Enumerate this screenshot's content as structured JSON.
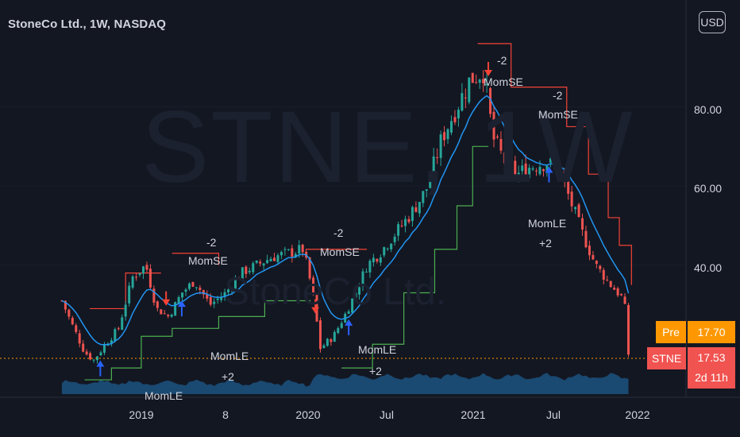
{
  "header": {
    "title": "StoneCo Ltd., 1W, NASDAQ",
    "currency": "USD"
  },
  "watermark": {
    "symbol": "STNE, 1W",
    "name": "StoneCo Ltd."
  },
  "price_axis": {
    "ticks": [
      "80.00",
      "60.00",
      "40.00"
    ]
  },
  "time_axis": {
    "ticks": [
      "2019",
      "8",
      "2020",
      "Jul",
      "2021",
      "Jul",
      "2022"
    ]
  },
  "badges": {
    "pre_label": "Pre",
    "pre_value": "17.70",
    "sym_label": "STNE",
    "sym_value": "17.53",
    "countdown": "2d 11h"
  },
  "colors": {
    "background": "#131722",
    "up": "#26a69a",
    "down": "#ef5350",
    "ema": "#2196f3",
    "stop_long": "#4caf50",
    "stop_short": "#f44336",
    "pre_badge": "#ff9800",
    "volume": "#1e5b8c"
  },
  "annotations": [
    {
      "text": "-2",
      "x": 260,
      "y": 297
    },
    {
      "text": "MomSE",
      "x": 237,
      "y": 320
    },
    {
      "text": "MomLE",
      "x": 265,
      "y": 440
    },
    {
      "text": "+2",
      "x": 279,
      "y": 466
    },
    {
      "text": "-2",
      "x": 420,
      "y": 285
    },
    {
      "text": "MomSE",
      "x": 403,
      "y": 309
    },
    {
      "text": "MomLE",
      "x": 451,
      "y": 432
    },
    {
      "text": "+2",
      "x": 465,
      "y": 459
    },
    {
      "text": "-2",
      "x": 626,
      "y": 68
    },
    {
      "text": "MomSE",
      "x": 609,
      "y": 95
    },
    {
      "text": "-2",
      "x": 696,
      "y": 112
    },
    {
      "text": "MomSE",
      "x": 678,
      "y": 136
    },
    {
      "text": "MomLE",
      "x": 665,
      "y": 273
    },
    {
      "text": "+2",
      "x": 679,
      "y": 298
    },
    {
      "text": "MomLE",
      "x": 182,
      "y": 490
    }
  ],
  "chart_data": {
    "type": "line",
    "title": "StoneCo Ltd., 1W, NASDAQ",
    "ylabel": "USD",
    "ylim": [
      9,
      101
    ],
    "xlim": [
      "2018-10-01",
      "2022-01-31"
    ],
    "grid": false,
    "series": [
      {
        "values": [
          [
            "2018-10-26",
            31
          ],
          [
            "2018-11-15",
            25
          ],
          [
            "2018-12-10",
            18
          ],
          [
            "2018-12-28",
            16
          ],
          [
            "2019-01-20",
            20
          ],
          [
            "2019-02-15",
            24
          ],
          [
            "2019-03-15",
            37
          ],
          [
            "2019-04-10",
            40
          ],
          [
            "2019-05-01",
            29
          ],
          [
            "2019-05-25",
            27
          ],
          [
            "2019-06-20",
            33
          ],
          [
            "2019-07-15",
            36
          ],
          [
            "2019-08-15",
            30
          ],
          [
            "2019-09-15",
            33
          ],
          [
            "2019-10-15",
            38
          ],
          [
            "2019-11-15",
            40
          ],
          [
            "2019-12-15",
            42
          ],
          [
            "2020-01-15",
            43
          ],
          [
            "2020-02-15",
            44
          ],
          [
            "2020-03-05",
            33
          ],
          [
            "2020-03-20",
            19
          ],
          [
            "2020-04-15",
            22
          ],
          [
            "2020-05-10",
            28
          ],
          [
            "2020-06-01",
            34
          ],
          [
            "2020-06-20",
            40
          ],
          [
            "2020-07-15",
            43
          ],
          [
            "2020-08-15",
            48
          ],
          [
            "2020-09-15",
            53
          ],
          [
            "2020-10-15",
            59
          ],
          [
            "2020-11-15",
            72
          ],
          [
            "2020-12-15",
            80
          ],
          [
            "2021-01-10",
            87
          ],
          [
            "2021-02-05",
            89
          ],
          [
            "2021-02-25",
            72
          ],
          [
            "2021-03-20",
            66
          ],
          [
            "2021-04-15",
            63
          ],
          [
            "2021-05-10",
            65
          ],
          [
            "2021-06-10",
            66
          ],
          [
            "2021-07-05",
            64
          ],
          [
            "2021-07-25",
            57
          ],
          [
            "2021-08-20",
            48
          ],
          [
            "2021-09-15",
            40
          ],
          [
            "2021-10-15",
            35
          ],
          [
            "2021-11-05",
            32
          ],
          [
            "2021-11-15",
            28
          ],
          [
            "2021-11-24",
            17.53
          ]
        ]
      }
    ],
    "markers": {
      "short_entries": [
        "2019-05-20",
        "2020-03-10",
        "2021-02-15",
        "2021-06-25"
      ],
      "long_entries": [
        "2019-01-10",
        "2019-06-20",
        "2020-05-15",
        "2021-06-15"
      ]
    }
  }
}
